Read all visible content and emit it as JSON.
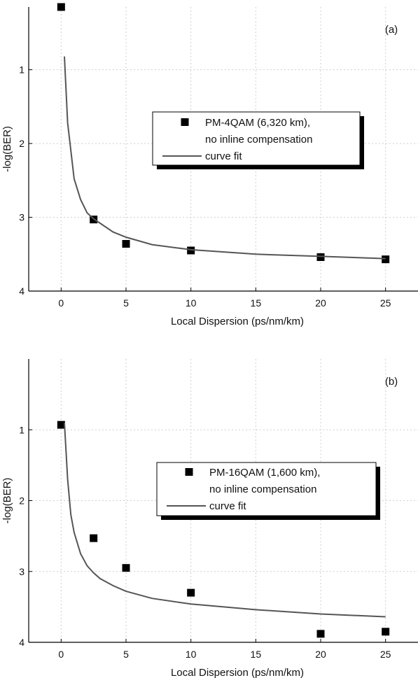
{
  "chart_data": [
    {
      "panel_label": "(a)",
      "type": "scatter",
      "xlabel": "Local Dispersion (ps/nm/km)",
      "ylabel": "-log(BER)",
      "xlim": [
        -2.5,
        27.5
      ],
      "ylim": [
        4.0,
        0.15
      ],
      "y_axis_inverted": true,
      "x_ticks": [
        0,
        5,
        10,
        15,
        20,
        25
      ],
      "y_ticks": [
        1,
        2,
        3,
        4
      ],
      "grid": true,
      "legend_position": "upper-right",
      "series": [
        {
          "name": "PM-4QAM (6,320 km), no inline compensation",
          "marker": "square",
          "color": "#000000",
          "x": [
            0,
            2.5,
            5,
            10,
            20,
            25
          ],
          "y": [
            0.15,
            3.03,
            3.36,
            3.45,
            3.54,
            3.57
          ]
        },
        {
          "name": "curve fit",
          "style": "line",
          "color": "#555555",
          "x": [
            0.25,
            0.5,
            1,
            1.5,
            2,
            2.5,
            3,
            4,
            5,
            7,
            10,
            15,
            20,
            25
          ],
          "y": [
            0.82,
            1.72,
            2.48,
            2.76,
            2.94,
            3.02,
            3.08,
            3.2,
            3.27,
            3.37,
            3.44,
            3.5,
            3.53,
            3.56
          ]
        }
      ]
    },
    {
      "panel_label": "(b)",
      "type": "scatter",
      "xlabel": "Local Dispersion (ps/nm/km)",
      "ylabel": "-log(BER)",
      "xlim": [
        -2.5,
        27.5
      ],
      "ylim": [
        4.0,
        0.0
      ],
      "y_axis_inverted": true,
      "x_ticks": [
        0,
        5,
        10,
        15,
        20,
        25
      ],
      "y_ticks": [
        1,
        2,
        3,
        4
      ],
      "grid": true,
      "legend_position": "upper-right",
      "series": [
        {
          "name": "PM-16QAM (1,600 km), no inline compensation",
          "marker": "square",
          "color": "#000000",
          "x": [
            0,
            2.5,
            5,
            10,
            20,
            25
          ],
          "y": [
            0.93,
            2.53,
            2.95,
            3.3,
            3.88,
            3.85
          ]
        },
        {
          "name": "curve fit",
          "style": "line",
          "color": "#555555",
          "x": [
            0.25,
            0.5,
            0.75,
            1,
            1.5,
            2,
            2.5,
            3,
            4,
            5,
            7,
            10,
            15,
            20,
            25
          ],
          "y": [
            0.9,
            1.7,
            2.2,
            2.45,
            2.75,
            2.92,
            3.02,
            3.1,
            3.2,
            3.28,
            3.38,
            3.46,
            3.54,
            3.6,
            3.64
          ]
        }
      ]
    }
  ]
}
